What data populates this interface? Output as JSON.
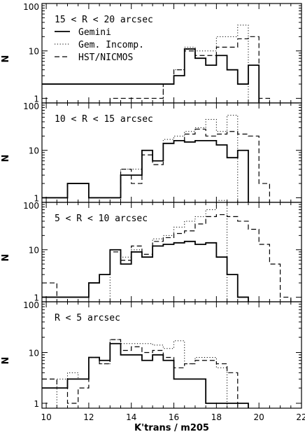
{
  "chart_data": {
    "type": "step",
    "xlabel": "K'trans / m205",
    "ylabel": "N",
    "xlim": [
      9.8,
      22
    ],
    "ylim": [
      0.8,
      100
    ],
    "y_scale": "log",
    "x_ticks": [
      "10",
      "12",
      "14",
      "16",
      "18",
      "20",
      "22"
    ],
    "y_ticks": [
      "1",
      "10",
      "100"
    ],
    "series_styles": [
      {
        "name": "Gemini",
        "dash": "solid",
        "width": 1.8
      },
      {
        "name": "Gem. Incomp.",
        "dash": "dotted",
        "width": 1.0
      },
      {
        "name": "HST/NICMOS",
        "dash": "dashed",
        "width": 1.2
      }
    ],
    "panels": [
      {
        "label": "15 < R < 20 arcsec",
        "legend": [
          "Gemini",
          "Gem. Incomp.",
          "HST/NICMOS"
        ],
        "series": [
          {
            "name": "Gemini",
            "x": [
              9.8,
              15.5,
              16.0,
              16.5,
              17.0,
              17.5,
              18.0,
              18.5,
              19.0,
              19.5,
              20.0
            ],
            "values": [
              2,
              2,
              3,
              11,
              7,
              5,
              8,
              4,
              2,
              5
            ]
          },
          {
            "name": "Gem. Incomp.",
            "x": [
              15.5,
              16.0,
              16.5,
              17.0,
              17.5,
              18.0,
              18.5,
              19.0,
              19.5
            ],
            "values": [
              2,
              4,
              12,
              10,
              10,
              20,
              20,
              35
            ]
          },
          {
            "name": "HST/NICMOS",
            "x": [
              13.0,
              15.5,
              16.0,
              16.5,
              17.0,
              17.5,
              18.0,
              18.5,
              19.0,
              19.5,
              20.0,
              20.5
            ],
            "values": [
              1,
              2,
              4,
              10,
              8,
              8,
              12,
              12,
              18,
              20,
              1
            ]
          }
        ]
      },
      {
        "label": "10 < R < 15 arcsec",
        "legend": [],
        "series": [
          {
            "name": "Gemini",
            "x": [
              9.8,
              11.0,
              12.0,
              13.5,
              14.0,
              14.5,
              15.0,
              15.5,
              16.0,
              16.5,
              17.0,
              17.5,
              18.0,
              18.5,
              19.0,
              19.5
            ],
            "values": [
              1,
              2,
              1,
              3,
              3,
              10,
              6,
              14,
              16,
              15,
              16,
              16,
              13,
              7,
              10
            ]
          },
          {
            "name": "Gem. Incomp.",
            "x": [
              13.5,
              14.0,
              14.5,
              15.0,
              15.5,
              16.0,
              16.5,
              17.0,
              17.5,
              18.0,
              18.5,
              19.0
            ],
            "values": [
              4,
              4,
              10,
              6,
              17,
              20,
              25,
              30,
              45,
              25,
              55
            ]
          },
          {
            "name": "HST/NICMOS",
            "x": [
              11.0,
              12.0,
              13.5,
              14.0,
              14.5,
              15.0,
              15.5,
              16.0,
              16.5,
              17.0,
              17.5,
              18.0,
              18.5,
              19.0,
              19.5,
              20.0,
              20.5
            ],
            "values": [
              2,
              1,
              4,
              2,
              8,
              5,
              14,
              16,
              22,
              28,
              20,
              22,
              25,
              22,
              20,
              2
            ]
          }
        ]
      },
      {
        "label": "5 < R < 10 arcsec",
        "legend": [],
        "series": [
          {
            "name": "Gemini",
            "x": [
              9.8,
              11.0,
              12.0,
              12.5,
              13.0,
              13.5,
              14.0,
              14.5,
              15.0,
              15.5,
              16.0,
              16.5,
              17.0,
              17.5,
              18.0,
              18.5,
              19.0,
              19.5
            ],
            "values": [
              1,
              1,
              2,
              3,
              10,
              5,
              9,
              7,
              12,
              13,
              14,
              15,
              13,
              14,
              7,
              3,
              1
            ]
          },
          {
            "name": "Gem. Incomp.",
            "x": [
              13.0,
              13.5,
              14.0,
              14.5,
              15.0,
              15.5,
              16.0,
              16.5,
              17.0,
              17.5,
              18.0,
              18.5
            ],
            "values": [
              10,
              7,
              10,
              7,
              17,
              20,
              30,
              40,
              50,
              70,
              110
            ]
          },
          {
            "name": "HST/NICMOS",
            "x": [
              9.8,
              10.5,
              11.5,
              12.0,
              12.5,
              13.0,
              13.5,
              14.0,
              14.5,
              15.0,
              15.5,
              16.0,
              16.5,
              17.0,
              17.5,
              18.0,
              18.5,
              19.0,
              19.5,
              20.0,
              20.5,
              21.0,
              21.5
            ],
            "values": [
              2,
              1,
              1,
              2,
              3,
              9,
              6,
              12,
              8,
              15,
              18,
              22,
              25,
              35,
              50,
              55,
              50,
              40,
              27,
              13,
              5,
              1
            ]
          }
        ]
      },
      {
        "label": "R < 5 arcsec",
        "legend": [],
        "series": [
          {
            "name": "Gemini",
            "x": [
              9.8,
              10.5,
              11.0,
              11.5,
              12.0,
              12.5,
              13.0,
              13.5,
              14.0,
              14.5,
              15.0,
              15.5,
              16.0,
              16.5,
              17.0,
              17.5,
              18.0,
              18.5,
              19.0,
              19.5
            ],
            "values": [
              2,
              2,
              3,
              3,
              8,
              7,
              15,
              9,
              9,
              7,
              9,
              7,
              3,
              3,
              3,
              1,
              1,
              1,
              1
            ]
          },
          {
            "name": "Gem. Incomp.",
            "x": [
              10.5,
              11.0,
              11.5,
              12.0,
              12.5,
              13.0,
              13.5,
              14.0,
              14.5,
              15.0,
              15.5,
              16.0,
              16.5,
              17.0,
              17.5,
              18.0,
              18.5
            ],
            "values": [
              3,
              4,
              3,
              8,
              6,
              18,
              15,
              15,
              15,
              14,
              12,
              17,
              6,
              8,
              8,
              5
            ]
          },
          {
            "name": "HST/NICMOS",
            "x": [
              9.8,
              10.5,
              11.0,
              11.5,
              12.0,
              12.5,
              13.0,
              13.5,
              14.0,
              14.5,
              15.0,
              15.5,
              16.0,
              16.5,
              17.0,
              17.5,
              18.0,
              18.5,
              19.0
            ],
            "values": [
              3,
              2,
              1,
              2,
              8,
              6,
              18,
              11,
              13,
              10,
              11,
              8,
              5,
              6,
              7,
              7,
              6,
              4
            ]
          }
        ]
      }
    ]
  }
}
